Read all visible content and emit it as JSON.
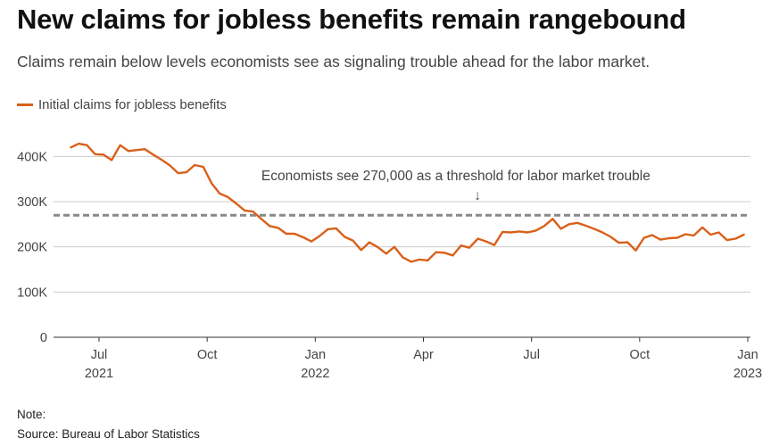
{
  "title": "New claims for jobless benefits remain rangebound",
  "subtitle": "Claims remain below levels economists see as signaling trouble ahead for the labor market.",
  "note_label": "Note:",
  "source": "Source: Bureau of Labor Statistics",
  "colors": {
    "series": "#d9601a",
    "threshold": "#888888",
    "grid": "#cccccc"
  },
  "chart_data": {
    "type": "line",
    "title": "New claims for jobless benefits remain rangebound",
    "legend": [
      "Initial claims for jobless benefits"
    ],
    "legend_position": "top-left",
    "ylim": [
      0,
      450000
    ],
    "y_ticks": [
      {
        "value": 0,
        "label": "0"
      },
      {
        "value": 100000,
        "label": "100K"
      },
      {
        "value": 200000,
        "label": "200K"
      },
      {
        "value": 300000,
        "label": "300K"
      },
      {
        "value": 400000,
        "label": "400K"
      }
    ],
    "x_ticks": [
      {
        "t": 2021.5,
        "label": "Jul",
        "year": "2021"
      },
      {
        "t": 2021.75,
        "label": "Oct",
        "year": ""
      },
      {
        "t": 2022.0,
        "label": "Jan",
        "year": "2022"
      },
      {
        "t": 2022.25,
        "label": "Apr",
        "year": ""
      },
      {
        "t": 2022.5,
        "label": "Jul",
        "year": ""
      },
      {
        "t": 2022.75,
        "label": "Oct",
        "year": ""
      },
      {
        "t": 2023.0,
        "label": "Jan",
        "year": "2023"
      }
    ],
    "xlim": [
      2021.41,
      2023.01
    ],
    "threshold": {
      "value": 270000,
      "label": "Economists see 270,000 as a threshold for labor market trouble",
      "arrow": "↓",
      "label_at": 2022.325
    },
    "series": [
      {
        "name": "Initial claims for jobless benefits",
        "x": [
          2021.435,
          2021.453,
          2021.472,
          2021.491,
          2021.51,
          2021.529,
          2021.549,
          2021.568,
          2021.587,
          2021.606,
          2021.625,
          2021.644,
          2021.664,
          2021.683,
          2021.702,
          2021.721,
          2021.741,
          2021.76,
          2021.779,
          2021.798,
          2021.817,
          2021.837,
          2021.856,
          2021.875,
          2021.895,
          2021.914,
          2021.933,
          2021.952,
          2021.972,
          2021.991,
          2022.01,
          2022.029,
          2022.048,
          2022.068,
          2022.087,
          2022.106,
          2022.125,
          2022.145,
          2022.164,
          2022.183,
          2022.202,
          2022.222,
          2022.241,
          2022.26,
          2022.279,
          2022.299,
          2022.318,
          2022.337,
          2022.356,
          2022.376,
          2022.395,
          2022.414,
          2022.433,
          2022.452,
          2022.472,
          2022.491,
          2022.51,
          2022.529,
          2022.549,
          2022.568,
          2022.587,
          2022.606,
          2022.625,
          2022.644,
          2022.664,
          2022.683,
          2022.702,
          2022.722,
          2022.741,
          2022.76,
          2022.779,
          2022.798,
          2022.818,
          2022.837,
          2022.856,
          2022.875,
          2022.895,
          2022.914,
          2022.933,
          2022.952,
          2022.972,
          2022.991
        ],
        "values": [
          420000,
          428000,
          425000,
          405000,
          404000,
          392000,
          425000,
          412000,
          414000,
          416000,
          404000,
          393000,
          380000,
          363000,
          365000,
          381000,
          377000,
          341000,
          318000,
          310000,
          296000,
          280000,
          278000,
          262000,
          246000,
          242000,
          229000,
          229000,
          221000,
          212000,
          224000,
          239000,
          241000,
          222000,
          214000,
          193000,
          210000,
          199000,
          185000,
          200000,
          177000,
          167000,
          172000,
          170000,
          188000,
          187000,
          181000,
          203000,
          198000,
          218000,
          212000,
          204000,
          233000,
          232000,
          234000,
          232000,
          236000,
          246000,
          262000,
          240000,
          250000,
          253000,
          247000,
          240000,
          232000,
          222000,
          209000,
          210000,
          192000,
          220000,
          226000,
          216000,
          219000,
          220000,
          228000,
          225000,
          243000,
          227000,
          232000,
          215000,
          218000,
          227000
        ]
      }
    ]
  }
}
